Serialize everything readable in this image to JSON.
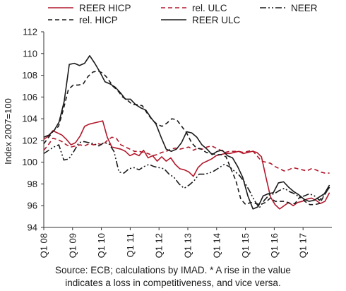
{
  "caption": {
    "line1": "Source: ECB; calculations by IMAD. * A rise in the value",
    "line2": "indicates a loss in competitiveness, and vice versa."
  },
  "chart_data": {
    "type": "line",
    "ylabel": "Index 2007=100",
    "xlabel": "",
    "ylim": [
      94,
      112
    ],
    "yticks": [
      94,
      96,
      98,
      100,
      102,
      104,
      106,
      108,
      110,
      112
    ],
    "x_tick_labels": [
      "Q1 08",
      "Q1 09",
      "Q1 10",
      "Q1 11",
      "Q1 12",
      "Q1 13",
      "Q1 14",
      "Q1 15",
      "Q1 16",
      "Q1 17"
    ],
    "x_start": "2008-01",
    "frequency": "monthly",
    "grid": false,
    "legend_position": "top",
    "series": [
      {
        "name": "REER HICP",
        "color": "#b2182b",
        "style": "solid",
        "values": [
          102.1,
          102.4,
          102.9,
          102.7,
          102.5,
          102.1,
          101.6,
          101.8,
          102.4,
          103.3,
          103.5,
          103.6,
          103.7,
          103.8,
          102.3,
          101.4,
          101.3,
          101.2,
          101.0,
          100.6,
          100.8,
          100.6,
          101.1,
          100.4,
          100.6,
          100.1,
          100.5,
          100.1,
          100.4,
          99.8,
          99.4,
          99.3,
          99.1,
          98.7,
          99.5,
          99.9,
          100.1,
          100.3,
          100.6,
          100.7,
          100.8,
          100.8,
          100.9,
          101.0,
          100.8,
          100.9,
          101.0,
          100.9,
          100.5,
          98.6,
          96.8,
          96.1,
          95.7,
          96.0,
          96.3,
          96.0,
          96.3,
          96.4,
          96.6,
          96.7,
          96.5,
          96.2,
          96.4,
          97.2
        ]
      },
      {
        "name": "rel. ULC",
        "color": "#b2182b",
        "style": "dashed",
        "values": [
          101.1,
          101.6,
          102.2,
          102.1,
          101.9,
          101.6,
          101.4,
          101.5,
          101.6,
          101.5,
          101.7,
          101.6,
          101.7,
          101.6,
          102.0,
          102.3,
          102.2,
          101.6,
          101.4,
          101.2,
          101.0,
          101.0,
          100.9,
          100.8,
          100.6,
          100.7,
          100.9,
          101.0,
          101.2,
          101.3,
          101.2,
          101.3,
          101.4,
          101.1,
          101.3,
          101.2,
          101.4,
          101.5,
          101.3,
          101.1,
          100.9,
          101.0,
          101.0,
          101.0,
          100.9,
          101.0,
          101.1,
          100.6,
          100.1,
          100.0,
          99.9,
          99.6,
          99.4,
          99.2,
          99.3,
          99.5,
          99.4,
          99.3,
          99.2,
          99.4,
          99.3,
          99.1,
          99.0,
          99.0
        ]
      },
      {
        "name": "NEER",
        "color": "#1a1a1a",
        "style": "dashdotdot",
        "values": [
          100.8,
          101.1,
          101.4,
          101.6,
          100.2,
          100.3,
          101.0,
          101.8,
          101.9,
          101.8,
          101.7,
          101.5,
          101.8,
          101.7,
          101.0,
          99.1,
          99.0,
          99.4,
          99.5,
          99.3,
          99.6,
          99.8,
          99.6,
          99.5,
          99.4,
          98.9,
          98.6,
          98.0,
          97.6,
          97.9,
          98.3,
          98.9,
          98.9,
          99.0,
          99.2,
          99.5,
          99.8,
          99.6,
          99.2,
          98.8,
          98.2,
          97.4,
          96.5,
          95.8,
          96.5,
          97.0,
          97.1,
          97.4,
          97.6,
          97.3,
          97.1,
          96.8,
          96.9,
          97.1,
          96.9,
          96.5,
          97.0,
          97.7
        ]
      },
      {
        "name": "rel. HICP",
        "color": "#1a1a1a",
        "style": "dashed",
        "values": [
          101.7,
          102.3,
          102.9,
          103.3,
          104.9,
          106.7,
          107.1,
          107.1,
          107.2,
          107.9,
          108.3,
          108.4,
          108.2,
          107.7,
          107.0,
          106.6,
          106.0,
          105.7,
          105.3,
          105.3,
          105.2,
          104.5,
          103.9,
          103.5,
          103.3,
          103.6,
          104.0,
          103.9,
          103.3,
          102.7,
          101.8,
          101.3,
          101.2,
          100.9,
          100.8,
          100.7,
          100.7,
          100.5,
          99.4,
          98.3,
          96.6,
          96.1,
          96.3,
          96.2,
          96.1,
          96.3,
          96.7,
          96.4,
          96.4,
          96.4,
          96.2,
          96.2,
          96.8,
          96.4,
          96.1,
          96.1,
          96.2,
          97.0,
          97.7
        ]
      },
      {
        "name": "REER ULC",
        "color": "#1a1a1a",
        "style": "solid",
        "values": [
          102.3,
          102.5,
          102.9,
          103.7,
          105.6,
          109.0,
          109.1,
          108.9,
          109.1,
          109.8,
          109.1,
          108.3,
          107.4,
          107.2,
          106.9,
          106.4,
          105.8,
          105.8,
          105.3,
          105.0,
          104.8,
          104.1,
          103.5,
          102.3,
          101.2,
          101.0,
          101.2,
          101.8,
          102.8,
          102.7,
          102.3,
          101.6,
          101.2,
          100.7,
          101.0,
          101.1,
          100.6,
          100.4,
          99.6,
          98.6,
          96.9,
          95.7,
          95.9,
          96.9,
          97.1,
          97.2,
          98.1,
          98.2,
          97.7,
          97.3,
          97.0,
          96.6,
          96.4,
          96.5,
          96.8,
          97.1,
          97.9
        ]
      }
    ]
  }
}
